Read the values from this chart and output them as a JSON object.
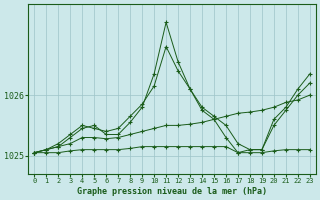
{
  "title": "Graphe pression niveau de la mer (hPa)",
  "background_color": "#cce8ea",
  "line_color": "#1a5c1a",
  "grid_color": "#9dc4c8",
  "xlim": [
    -0.5,
    23.5
  ],
  "ylim": [
    1024.7,
    1027.5
  ],
  "yticks": [
    1025,
    1026
  ],
  "xticks": [
    0,
    1,
    2,
    3,
    4,
    5,
    6,
    7,
    8,
    9,
    10,
    11,
    12,
    13,
    14,
    15,
    16,
    17,
    18,
    19,
    20,
    21,
    22,
    23
  ],
  "series": [
    {
      "x": [
        0,
        1,
        2,
        3,
        4,
        5,
        6,
        7,
        8,
        9,
        10,
        11,
        12,
        13,
        14,
        15,
        16,
        17,
        18,
        19,
        20,
        21,
        22,
        23
      ],
      "y": [
        1025.05,
        1025.05,
        1025.05,
        1025.08,
        1025.1,
        1025.1,
        1025.1,
        1025.1,
        1025.12,
        1025.15,
        1025.15,
        1025.15,
        1025.15,
        1025.15,
        1025.15,
        1025.15,
        1025.15,
        1025.05,
        1025.05,
        1025.05,
        1025.08,
        1025.1,
        1025.1,
        1025.1
      ]
    },
    {
      "x": [
        0,
        1,
        2,
        3,
        4,
        5,
        6,
        7,
        8,
        9,
        10,
        11,
        12,
        13,
        14,
        15,
        16,
        17,
        18,
        19,
        20,
        21,
        22,
        23
      ],
      "y": [
        1025.05,
        1025.1,
        1025.15,
        1025.2,
        1025.3,
        1025.3,
        1025.28,
        1025.3,
        1025.35,
        1025.4,
        1025.45,
        1025.5,
        1025.5,
        1025.52,
        1025.55,
        1025.6,
        1025.65,
        1025.7,
        1025.72,
        1025.75,
        1025.8,
        1025.88,
        1025.92,
        1026.0
      ]
    },
    {
      "x": [
        0,
        1,
        2,
        3,
        4,
        5,
        6,
        7,
        8,
        9,
        10,
        11,
        12,
        13,
        14,
        15,
        16,
        17,
        18,
        19,
        20,
        21,
        22,
        23
      ],
      "y": [
        1025.05,
        1025.1,
        1025.2,
        1025.35,
        1025.5,
        1025.45,
        1025.4,
        1025.45,
        1025.65,
        1025.85,
        1026.15,
        1026.8,
        1026.4,
        1026.1,
        1025.8,
        1025.65,
        1025.5,
        1025.2,
        1025.1,
        1025.1,
        1025.5,
        1025.75,
        1026.0,
        1026.2
      ]
    },
    {
      "x": [
        0,
        1,
        2,
        3,
        4,
        5,
        6,
        7,
        8,
        9,
        10,
        11,
        12,
        13,
        14,
        15,
        16,
        17,
        18,
        19,
        20,
        21,
        22,
        23
      ],
      "y": [
        1025.05,
        1025.1,
        1025.15,
        1025.3,
        1025.45,
        1025.5,
        1025.35,
        1025.35,
        1025.55,
        1025.8,
        1026.35,
        1027.2,
        1026.55,
        1026.1,
        1025.75,
        1025.6,
        1025.3,
        1025.05,
        1025.1,
        1025.1,
        1025.6,
        1025.8,
        1026.1,
        1026.35
      ]
    }
  ]
}
